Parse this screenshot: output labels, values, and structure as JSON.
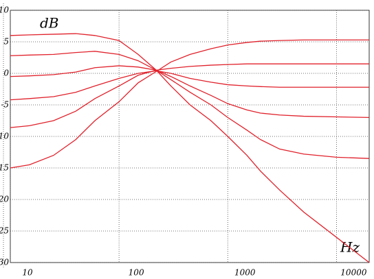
{
  "chart_data": {
    "type": "line",
    "y_label": "dB",
    "x_label": "Hz",
    "x": [
      10,
      15,
      25,
      40,
      60,
      100,
      150,
      220,
      300,
      450,
      700,
      1000,
      1500,
      2000,
      3000,
      5000,
      10000,
      20000
    ],
    "series": [
      {
        "color": "#e0202a",
        "values": [
          6.0,
          6.1,
          6.2,
          6.3,
          6.0,
          5.2,
          3.0,
          0.5,
          -2,
          -5,
          -7.5,
          -10,
          -13,
          -15.5,
          -18.5,
          -22,
          -26,
          -30
        ]
      },
      {
        "color": "#e0202a",
        "values": [
          2.8,
          2.9,
          3.0,
          3.3,
          3.5,
          3.0,
          2.0,
          0.5,
          -1,
          -3,
          -5,
          -7,
          -9,
          -10.5,
          -12,
          -12.8,
          -13.3,
          -13.5
        ]
      },
      {
        "color": "#e0202a",
        "values": [
          -0.5,
          -0.4,
          -0.2,
          0.2,
          0.9,
          1.2,
          1.0,
          0.5,
          -0.5,
          -2,
          -3.5,
          -4.8,
          -5.8,
          -6.3,
          -6.6,
          -6.8,
          -6.9,
          -7
        ]
      },
      {
        "color": "#e0202a",
        "values": [
          -4.2,
          -4.0,
          -3.7,
          -3,
          -2,
          -0.8,
          0,
          0.4,
          0,
          -0.8,
          -1.4,
          -1.8,
          -2.0,
          -2.1,
          -2.2,
          -2.2,
          -2.2,
          -2.2
        ]
      },
      {
        "color": "#e0202a",
        "values": [
          -8.6,
          -8.3,
          -7.5,
          -6,
          -4,
          -2,
          -0.3,
          0.5,
          0.8,
          1.1,
          1.3,
          1.4,
          1.5,
          1.5,
          1.5,
          1.5,
          1.5,
          1.5
        ]
      },
      {
        "color": "#e0202a",
        "values": [
          -15,
          -14.5,
          -13,
          -10.5,
          -7.5,
          -4.5,
          -1.5,
          0.3,
          1.8,
          3,
          3.9,
          4.5,
          4.9,
          5.1,
          5.2,
          5.3,
          5.3,
          5.3
        ]
      }
    ],
    "xlim": [
      10,
      20000
    ],
    "xticks": [
      10,
      100,
      1000,
      10000
    ],
    "xscale": "log",
    "ylim": [
      -30,
      10
    ],
    "yticks": [
      10,
      5,
      0,
      -5,
      -10,
      -15,
      -20,
      -25,
      -30
    ],
    "grid": true
  }
}
